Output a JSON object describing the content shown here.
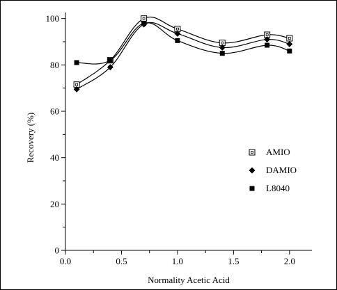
{
  "chart_data": {
    "type": "line",
    "title": "",
    "xlabel": "Normality Acetic Acid",
    "ylabel": "Recovery (%)",
    "xlim": [
      0.0,
      2.2
    ],
    "ylim": [
      0,
      102
    ],
    "x_ticks": [
      "0.0",
      "0.5",
      "1.0",
      "1.5",
      "2.0"
    ],
    "y_ticks": [
      "0",
      "20",
      "40",
      "60",
      "80",
      "100"
    ],
    "legend_position": "right",
    "series": [
      {
        "name": "AMIO",
        "marker": "open-square",
        "color": "#000000",
        "x": [
          0.1,
          0.4,
          0.7,
          1.0,
          1.4,
          1.8,
          2.0
        ],
        "y": [
          71.5,
          82.0,
          100.0,
          95.5,
          89.5,
          93.0,
          91.5
        ]
      },
      {
        "name": "DAMIO",
        "marker": "filled-diamond",
        "color": "#000000",
        "x": [
          0.1,
          0.4,
          0.7,
          1.0,
          1.4,
          1.8,
          2.0
        ],
        "y": [
          69.5,
          79.0,
          97.5,
          93.5,
          87.5,
          91.0,
          89.0
        ]
      },
      {
        "name": "L8040",
        "marker": "filled-square",
        "color": "#000000",
        "x": [
          0.1,
          0.4,
          0.7,
          1.0,
          1.4,
          1.8,
          2.0
        ],
        "y": [
          81.0,
          82.0,
          98.0,
          90.5,
          85.0,
          88.5,
          86.0
        ]
      }
    ]
  }
}
